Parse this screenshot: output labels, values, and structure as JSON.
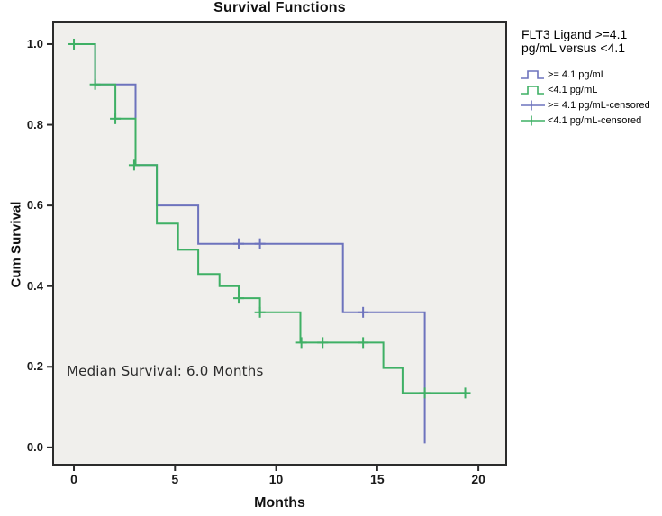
{
  "title": "Survival Functions",
  "axes": {
    "x_label": "Months",
    "y_label": "Cum Survival",
    "x_ticks": [
      "0",
      "5",
      "10",
      "15",
      "20"
    ],
    "y_ticks": [
      "0.0",
      "0.2",
      "0.4",
      "0.6",
      "0.8",
      "1.0"
    ]
  },
  "annotation": {
    "median_survival": "Median Survival: 6.0 Months"
  },
  "legend": {
    "title_line1": "FLT3 Ligand >=4.1",
    "title_line2": "pg/mL versus <4.1",
    "items": [
      {
        "label": ">= 4.1 pg/mL",
        "symbol": "step",
        "color": "#6d73bd"
      },
      {
        "label": "<4.1 pg/mL",
        "symbol": "step",
        "color": "#3fb065"
      },
      {
        "label": ">= 4.1 pg/mL-censored",
        "symbol": "censor",
        "color": "#6d73bd"
      },
      {
        "label": "<4.1 pg/mL-censored",
        "symbol": "censor",
        "color": "#3fb065"
      }
    ]
  },
  "colors": {
    "group_ge41": "#6d73bd",
    "group_lt41": "#3fb065",
    "plot_background": "#f0efec",
    "frame": "#2b2b2b"
  },
  "chart_data": {
    "type": "line",
    "subtype": "kaplan-meier-step",
    "title": "Survival Functions",
    "xlabel": "Months",
    "ylabel": "Cum Survival",
    "xlim": [
      -1.07,
      21.42
    ],
    "ylim": [
      -0.045,
      1.058
    ],
    "x_tick_values": [
      0,
      5,
      10,
      15,
      20
    ],
    "y_tick_values": [
      0.0,
      0.2,
      0.4,
      0.6,
      0.8,
      1.0
    ],
    "grid": false,
    "legend_position": "right",
    "series": [
      {
        "name": ">= 4.1 pg/mL",
        "color": "#6d73bd",
        "steps": [
          [
            0,
            1.0
          ],
          [
            1.05,
            0.9
          ],
          [
            3.05,
            0.7
          ],
          [
            4.1,
            0.6
          ],
          [
            6.15,
            0.505
          ],
          [
            13.3,
            0.335
          ],
          [
            17.35,
            0.01
          ]
        ],
        "end_time": 17.35,
        "censored": [
          [
            8.15,
            0.505
          ],
          [
            9.2,
            0.505
          ],
          [
            14.3,
            0.335
          ]
        ]
      },
      {
        "name": "<4.1 pg/mL",
        "color": "#3fb065",
        "steps": [
          [
            0,
            1.0
          ],
          [
            1.05,
            0.9
          ],
          [
            2.05,
            0.815
          ],
          [
            3.05,
            0.7
          ],
          [
            4.1,
            0.555
          ],
          [
            5.15,
            0.49
          ],
          [
            6.15,
            0.43
          ],
          [
            7.2,
            0.4
          ],
          [
            8.15,
            0.37
          ],
          [
            9.2,
            0.335
          ],
          [
            11.2,
            0.26
          ],
          [
            15.3,
            0.197
          ],
          [
            16.25,
            0.135
          ]
        ],
        "end_time": 19.45,
        "censored": [
          [
            0,
            1.0
          ],
          [
            1.05,
            0.9
          ],
          [
            2.05,
            0.815
          ],
          [
            2.98,
            0.7
          ],
          [
            8.15,
            0.37
          ],
          [
            9.2,
            0.335
          ],
          [
            11.25,
            0.26
          ],
          [
            12.3,
            0.26
          ],
          [
            14.3,
            0.26
          ],
          [
            17.35,
            0.135
          ],
          [
            19.35,
            0.135
          ]
        ]
      }
    ]
  }
}
